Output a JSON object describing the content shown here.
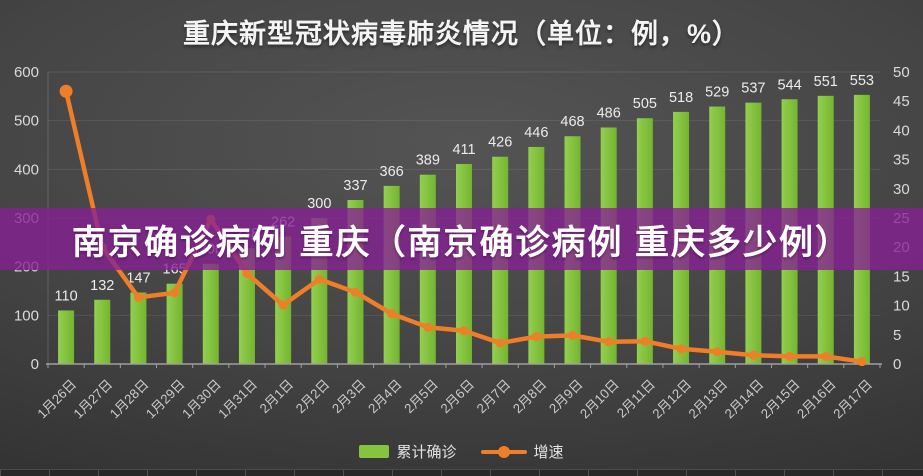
{
  "title": "重庆新型冠状病毒肺炎情况（单位：例，%）",
  "overlay_banner": {
    "text": "南京确诊病例 重庆（南京确诊病例 重庆多少例）"
  },
  "legend": {
    "position": "bottom",
    "items": [
      {
        "label": "累计确诊",
        "swatch": "bar-swatch",
        "color": "#84c43e"
      },
      {
        "label": "增速",
        "swatch": "line-swatch",
        "color": "#ee7e27"
      }
    ]
  },
  "colors": {
    "bar": "#84c43e",
    "bar_gradient_light": "#94cf50",
    "bar_gradient_dark": "#74b52f",
    "line": "#ee7e27",
    "banner": "rgba(134,32,148,0.78)",
    "axis_label": "#dadada",
    "bar_value_label": "#ececec",
    "date_label": "#cbcbcb",
    "grid_line": "rgba(255,255,255,0.09)",
    "axis_line": "#9f9f9f"
  },
  "chart_data": {
    "type": "bar+line",
    "title": "重庆新型冠状病毒肺炎情况（单位：例，%）",
    "categories": [
      "1月26日",
      "1月27日",
      "1月28日",
      "1月29日",
      "1月30日",
      "1月31日",
      "2月1日",
      "2月2日",
      "2月3日",
      "2月4日",
      "2月5日",
      "2月6日",
      "2月7日",
      "2月8日",
      "2月9日",
      "2月10日",
      "2月11日",
      "2月12日",
      "2月13日",
      "2月14日",
      "2月15日",
      "2月16日",
      "2月17日"
    ],
    "series": [
      {
        "name": "累计确诊",
        "type": "bar",
        "y_axis": "left",
        "values": [
          110,
          132,
          147,
          165,
          206,
          238,
          262,
          300,
          337,
          366,
          389,
          411,
          426,
          446,
          468,
          486,
          505,
          518,
          529,
          537,
          544,
          551,
          553
        ],
        "data_labels": true
      },
      {
        "name": "增速",
        "type": "line",
        "y_axis": "right",
        "values": [
          46.7,
          20.0,
          11.4,
          12.2,
          24.8,
          15.5,
          10.1,
          14.5,
          12.3,
          8.6,
          6.3,
          5.7,
          3.6,
          4.7,
          4.9,
          3.8,
          3.9,
          2.6,
          2.1,
          1.5,
          1.3,
          1.3,
          0.4
        ],
        "data_labels": false
      }
    ],
    "left_axis": {
      "min": 0,
      "max": 600,
      "step": 100,
      "ticks": [
        0,
        100,
        200,
        300,
        400,
        500,
        600
      ]
    },
    "right_axis": {
      "min": 0,
      "max": 50,
      "step": 5,
      "ticks": [
        0,
        5,
        10,
        15,
        20,
        25,
        30,
        35,
        40,
        45,
        50
      ]
    },
    "grid": "horizontal",
    "x_tick_rotation": 45,
    "legend_position": "bottom"
  }
}
